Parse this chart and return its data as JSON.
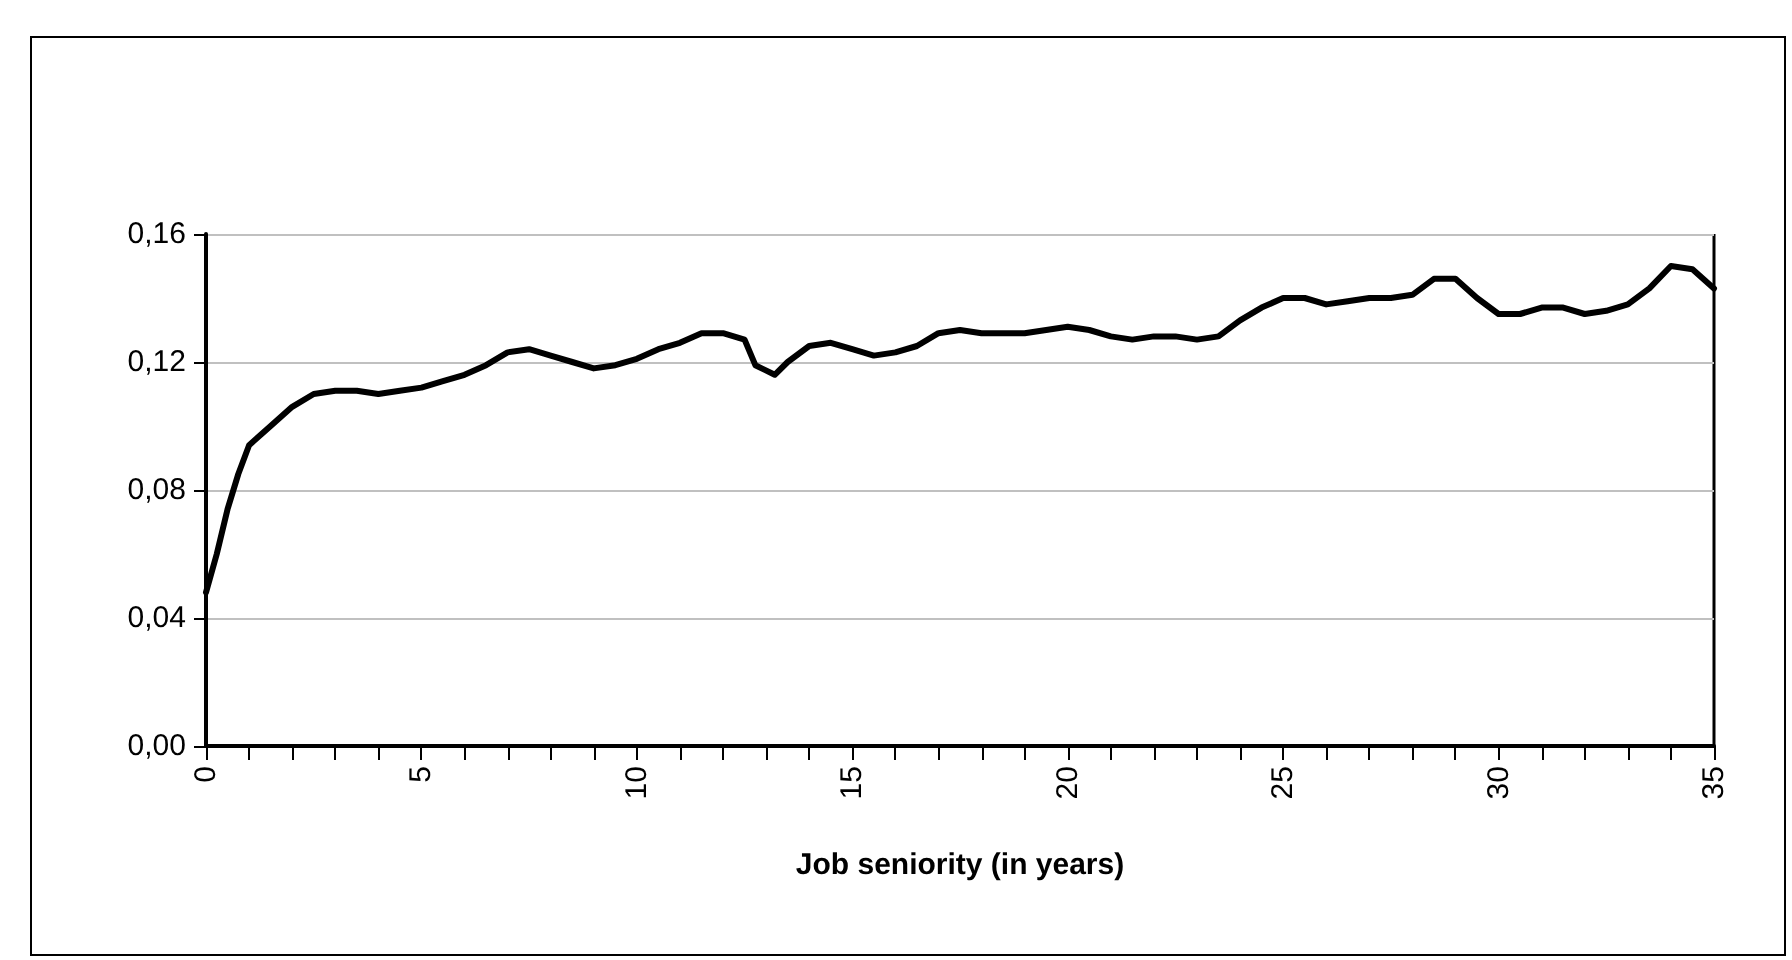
{
  "chart_data": {
    "type": "line",
    "xlabel": "Job seniority (in years)",
    "x": [
      0,
      0.25,
      0.5,
      0.75,
      1,
      1.5,
      2,
      2.5,
      3,
      3.5,
      4,
      4.5,
      5,
      5.5,
      6,
      6.5,
      7,
      7.5,
      8,
      8.5,
      9,
      9.5,
      10,
      10.5,
      11,
      11.5,
      12,
      12.5,
      12.75,
      13.2,
      13.5,
      14,
      14.5,
      15,
      15.5,
      16,
      16.5,
      17,
      17.5,
      18,
      18.5,
      19,
      19.5,
      20,
      20.5,
      21,
      21.5,
      22,
      22.5,
      23,
      23.5,
      24,
      24.5,
      25,
      25.5,
      26,
      26.5,
      27,
      27.5,
      28,
      28.5,
      29,
      29.5,
      30,
      30.5,
      31,
      31.5,
      32,
      32.5,
      33,
      33.5,
      34,
      34.5,
      35
    ],
    "series": [
      {
        "color": "#000000",
        "values": [
          0.048,
          0.06,
          0.074,
          0.085,
          0.094,
          0.1,
          0.106,
          0.11,
          0.111,
          0.111,
          0.11,
          0.111,
          0.112,
          0.114,
          0.116,
          0.119,
          0.123,
          0.124,
          0.122,
          0.12,
          0.118,
          0.119,
          0.121,
          0.124,
          0.126,
          0.129,
          0.129,
          0.127,
          0.119,
          0.116,
          0.12,
          0.125,
          0.126,
          0.124,
          0.122,
          0.123,
          0.125,
          0.129,
          0.13,
          0.129,
          0.129,
          0.129,
          0.13,
          0.131,
          0.13,
          0.128,
          0.127,
          0.128,
          0.128,
          0.127,
          0.128,
          0.133,
          0.137,
          0.14,
          0.14,
          0.138,
          0.139,
          0.14,
          0.14,
          0.141,
          0.146,
          0.146,
          0.14,
          0.135,
          0.135,
          0.137,
          0.137,
          0.135,
          0.136,
          0.138,
          0.143,
          0.15,
          0.149,
          0.143
        ]
      }
    ],
    "xlim": [
      0,
      35
    ],
    "xticks": [
      0,
      {
        "value": 1,
        "label": null
      },
      {
        "value": 2,
        "label": null
      },
      {
        "value": 3,
        "label": null
      },
      {
        "value": 4,
        "label": null
      },
      5,
      {
        "value": 6,
        "label": null
      },
      {
        "value": 7,
        "label": null
      },
      {
        "value": 8,
        "label": null
      },
      {
        "value": 9,
        "label": null
      },
      10,
      {
        "value": 11,
        "label": null
      },
      {
        "value": 12,
        "label": null
      },
      {
        "value": 13,
        "label": null
      },
      {
        "value": 14,
        "label": null
      },
      15,
      {
        "value": 16,
        "label": null
      },
      {
        "value": 17,
        "label": null
      },
      {
        "value": 18,
        "label": null
      },
      {
        "value": 19,
        "label": null
      },
      20,
      {
        "value": 21,
        "label": null
      },
      {
        "value": 22,
        "label": null
      },
      {
        "value": 23,
        "label": null
      },
      {
        "value": 24,
        "label": null
      },
      25,
      {
        "value": 26,
        "label": null
      },
      {
        "value": 27,
        "label": null
      },
      {
        "value": 28,
        "label": null
      },
      {
        "value": 29,
        "label": null
      },
      30,
      {
        "value": 31,
        "label": null
      },
      {
        "value": 32,
        "label": null
      },
      {
        "value": 33,
        "label": null
      },
      {
        "value": 34,
        "label": null
      },
      35
    ],
    "ylim": [
      0,
      0.16
    ],
    "yticks": [
      {
        "value": 0,
        "label": "0,00"
      },
      {
        "value": 0.04,
        "label": "0,04"
      },
      {
        "value": 0.08,
        "label": "0,08"
      },
      {
        "value": 0.12,
        "label": "0,12"
      },
      {
        "value": 0.16,
        "label": "0,16"
      }
    ],
    "grid": "y",
    "marker": "none",
    "line_style": "solid"
  }
}
